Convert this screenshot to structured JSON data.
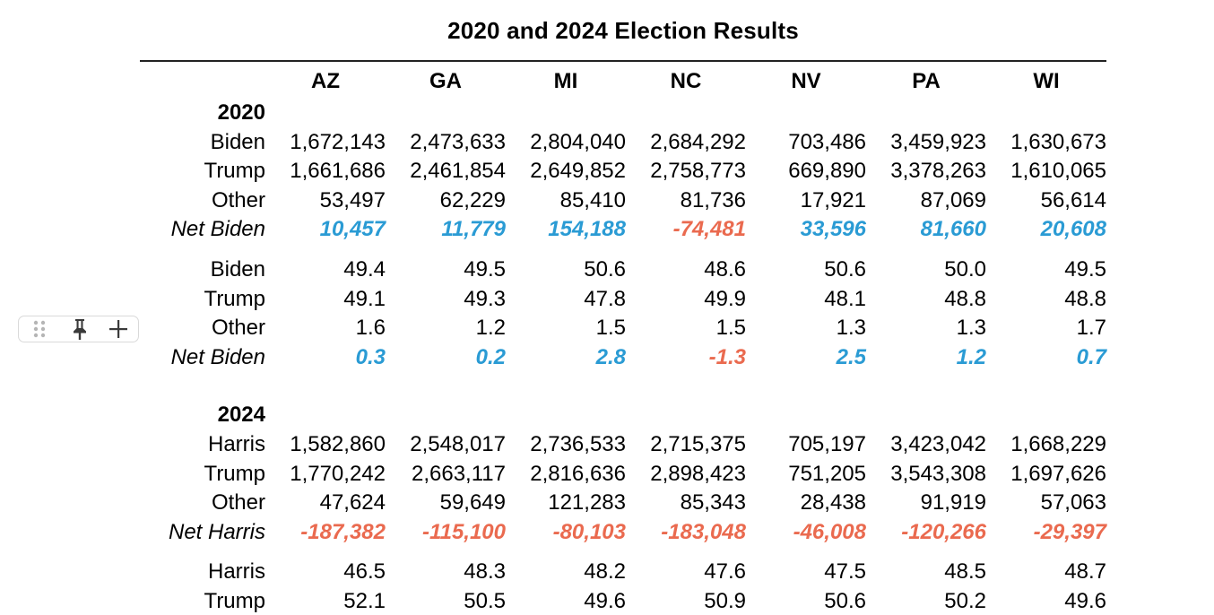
{
  "title": "2020 and 2024 Election Results",
  "columns": [
    "AZ",
    "GA",
    "MI",
    "NC",
    "NV",
    "PA",
    "WI"
  ],
  "sections": [
    {
      "year": "2020",
      "blocks": [
        {
          "rows": [
            {
              "label": "Biden",
              "values": [
                "1,672,143",
                "2,473,633",
                "2,804,040",
                "2,684,292",
                "703,486",
                "3,459,923",
                "1,630,673"
              ]
            },
            {
              "label": "Trump",
              "values": [
                "1,661,686",
                "2,461,854",
                "2,649,852",
                "2,758,773",
                "669,890",
                "3,378,263",
                "1,610,065"
              ]
            },
            {
              "label": "Other",
              "values": [
                "53,497",
                "62,229",
                "85,410",
                "81,736",
                "17,921",
                "87,069",
                "56,614"
              ]
            }
          ],
          "net": {
            "label": "Net Biden",
            "values": [
              "10,457",
              "11,779",
              "154,188",
              "-74,481",
              "33,596",
              "81,660",
              "20,608"
            ]
          }
        },
        {
          "rows": [
            {
              "label": "Biden",
              "values": [
                "49.4",
                "49.5",
                "50.6",
                "48.6",
                "50.6",
                "50.0",
                "49.5"
              ]
            },
            {
              "label": "Trump",
              "values": [
                "49.1",
                "49.3",
                "47.8",
                "49.9",
                "48.1",
                "48.8",
                "48.8"
              ]
            },
            {
              "label": "Other",
              "values": [
                "1.6",
                "1.2",
                "1.5",
                "1.5",
                "1.3",
                "1.3",
                "1.7"
              ]
            }
          ],
          "net": {
            "label": "Net Biden",
            "values": [
              "0.3",
              "0.2",
              "2.8",
              "-1.3",
              "2.5",
              "1.2",
              "0.7"
            ]
          }
        }
      ]
    },
    {
      "year": "2024",
      "blocks": [
        {
          "rows": [
            {
              "label": "Harris",
              "values": [
                "1,582,860",
                "2,548,017",
                "2,736,533",
                "2,715,375",
                "705,197",
                "3,423,042",
                "1,668,229"
              ]
            },
            {
              "label": "Trump",
              "values": [
                "1,770,242",
                "2,663,117",
                "2,816,636",
                "2,898,423",
                "751,205",
                "3,543,308",
                "1,697,626"
              ]
            },
            {
              "label": "Other",
              "values": [
                "47,624",
                "59,649",
                "121,283",
                "85,343",
                "28,438",
                "91,919",
                "57,063"
              ]
            }
          ],
          "net": {
            "label": "Net Harris",
            "values": [
              "-187,382",
              "-115,100",
              "-80,103",
              "-183,048",
              "-46,008",
              "-120,266",
              "-29,397"
            ]
          }
        },
        {
          "rows": [
            {
              "label": "Harris",
              "values": [
                "46.5",
                "48.3",
                "48.2",
                "47.6",
                "47.5",
                "48.5",
                "48.7"
              ]
            },
            {
              "label": "Trump",
              "values": [
                "52.1",
                "50.5",
                "49.6",
                "50.9",
                "50.6",
                "50.2",
                "49.6"
              ]
            }
          ]
        }
      ]
    }
  ],
  "colors": {
    "positive": "#2a9bd4",
    "negative": "#ea6a4f"
  },
  "toolbar": {
    "icons": [
      "drag-handle-icon",
      "pin-icon",
      "plus-icon"
    ]
  }
}
